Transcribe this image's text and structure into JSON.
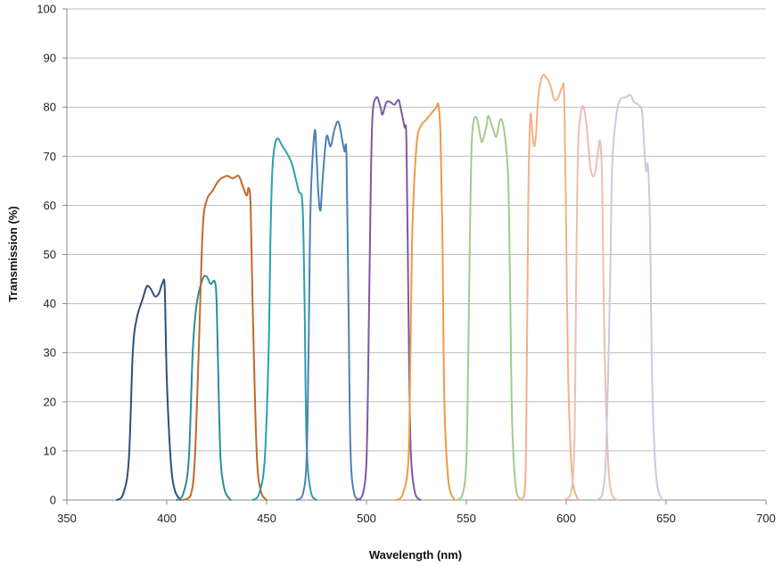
{
  "chart_data": {
    "type": "line",
    "title": "",
    "xlabel": "Wavelength (nm)",
    "ylabel": "Transmission (%)",
    "xlim": [
      350,
      700
    ],
    "ylim": [
      0,
      100
    ],
    "x_ticks": [
      "350",
      "400",
      "450",
      "500",
      "550",
      "600",
      "650",
      "700"
    ],
    "y_ticks": [
      "0",
      "10",
      "20",
      "30",
      "40",
      "50",
      "60",
      "70",
      "80",
      "90",
      "100"
    ],
    "grid": true,
    "legend": "none",
    "series": [
      {
        "color": "#2e4f78",
        "points": [
          [
            375,
            0
          ],
          [
            378,
            1
          ],
          [
            381,
            8
          ],
          [
            383,
            30
          ],
          [
            385,
            37
          ],
          [
            388,
            41
          ],
          [
            390,
            43.5
          ],
          [
            392,
            43
          ],
          [
            394,
            41.5
          ],
          [
            396,
            42
          ],
          [
            398,
            44.3
          ],
          [
            399,
            43
          ],
          [
            400,
            25
          ],
          [
            402,
            8
          ],
          [
            404,
            2
          ],
          [
            407,
            0
          ]
        ]
      },
      {
        "color": "#2e8d96",
        "points": [
          [
            405,
            0
          ],
          [
            408,
            1
          ],
          [
            411,
            8
          ],
          [
            413,
            30
          ],
          [
            415,
            40
          ],
          [
            418,
            45
          ],
          [
            420,
            45.5
          ],
          [
            422,
            44
          ],
          [
            424,
            44.5
          ],
          [
            425,
            40
          ],
          [
            426,
            22
          ],
          [
            427,
            8
          ],
          [
            429,
            2
          ],
          [
            432,
            0
          ]
        ]
      },
      {
        "color": "#c0692a",
        "points": [
          [
            408,
            0
          ],
          [
            412,
            1
          ],
          [
            414,
            8
          ],
          [
            416,
            30
          ],
          [
            418,
            55
          ],
          [
            420,
            61
          ],
          [
            423,
            63
          ],
          [
            426,
            65
          ],
          [
            430,
            66
          ],
          [
            433,
            65.5
          ],
          [
            436,
            66
          ],
          [
            438,
            64
          ],
          [
            440,
            62
          ],
          [
            441,
            63.5
          ],
          [
            442,
            60
          ],
          [
            443,
            40
          ],
          [
            445,
            10
          ],
          [
            447,
            2
          ],
          [
            450,
            0
          ]
        ]
      },
      {
        "color": "#2a9fb0",
        "points": [
          [
            443,
            0
          ],
          [
            446,
            1
          ],
          [
            449,
            8
          ],
          [
            451,
            30
          ],
          [
            452,
            55
          ],
          [
            453,
            68
          ],
          [
            455,
            73.5
          ],
          [
            458,
            72
          ],
          [
            461,
            70
          ],
          [
            463,
            68
          ],
          [
            466,
            63
          ],
          [
            468,
            60
          ],
          [
            469,
            40
          ],
          [
            470,
            12
          ],
          [
            472,
            2
          ],
          [
            475,
            0
          ]
        ]
      },
      {
        "color": "#4d80b5",
        "points": [
          [
            465,
            0
          ],
          [
            468,
            1
          ],
          [
            470,
            8
          ],
          [
            471,
            30
          ],
          [
            472,
            60
          ],
          [
            474,
            75
          ],
          [
            475,
            70
          ],
          [
            476,
            62
          ],
          [
            477,
            59
          ],
          [
            478,
            65
          ],
          [
            480,
            74
          ],
          [
            482,
            72
          ],
          [
            484,
            75.5
          ],
          [
            486,
            77
          ],
          [
            488,
            73
          ],
          [
            489,
            71
          ],
          [
            490,
            70
          ],
          [
            491,
            40
          ],
          [
            492,
            10
          ],
          [
            494,
            1
          ],
          [
            497,
            0
          ]
        ]
      },
      {
        "color": "#7a5aa3",
        "points": [
          [
            495,
            0
          ],
          [
            498,
            1
          ],
          [
            500,
            8
          ],
          [
            501,
            30
          ],
          [
            502,
            60
          ],
          [
            503,
            78
          ],
          [
            505,
            82
          ],
          [
            507,
            80
          ],
          [
            508,
            78.5
          ],
          [
            510,
            81
          ],
          [
            512,
            81
          ],
          [
            514,
            80.5
          ],
          [
            516,
            81.5
          ],
          [
            517,
            80
          ],
          [
            519,
            76
          ],
          [
            520,
            73
          ],
          [
            521,
            40
          ],
          [
            522,
            12
          ],
          [
            524,
            2
          ],
          [
            527,
            0
          ]
        ]
      },
      {
        "color": "#ee9a45",
        "points": [
          [
            515,
            0
          ],
          [
            518,
            1
          ],
          [
            521,
            8
          ],
          [
            522,
            30
          ],
          [
            523,
            55
          ],
          [
            525,
            72
          ],
          [
            527,
            76
          ],
          [
            530,
            77.5
          ],
          [
            533,
            79
          ],
          [
            535,
            80
          ],
          [
            536,
            80.5
          ],
          [
            537,
            75
          ],
          [
            538,
            55
          ],
          [
            539,
            20
          ],
          [
            541,
            4
          ],
          [
            544,
            0
          ]
        ]
      },
      {
        "color": "#a6c98d",
        "points": [
          [
            545,
            0
          ],
          [
            548,
            1
          ],
          [
            550,
            8
          ],
          [
            551,
            30
          ],
          [
            552,
            60
          ],
          [
            553,
            75
          ],
          [
            555,
            78
          ],
          [
            557,
            74
          ],
          [
            558,
            73
          ],
          [
            560,
            76
          ],
          [
            561,
            78.2
          ],
          [
            563,
            76
          ],
          [
            565,
            74
          ],
          [
            567,
            77.5
          ],
          [
            569,
            75
          ],
          [
            571,
            65
          ],
          [
            572,
            40
          ],
          [
            573,
            15
          ],
          [
            575,
            2
          ],
          [
            578,
            0
          ]
        ]
      },
      {
        "color": "#f4b08a",
        "points": [
          [
            576,
            0
          ],
          [
            579,
            1
          ],
          [
            580,
            15
          ],
          [
            581,
            60
          ],
          [
            582,
            78
          ],
          [
            583,
            75
          ],
          [
            584,
            72
          ],
          [
            585,
            75
          ],
          [
            586,
            82
          ],
          [
            588,
            86.3
          ],
          [
            590,
            86
          ],
          [
            592,
            84.5
          ],
          [
            594,
            81.5
          ],
          [
            596,
            82
          ],
          [
            598,
            84
          ],
          [
            599,
            82
          ],
          [
            600,
            55
          ],
          [
            601,
            25
          ],
          [
            603,
            5
          ],
          [
            606,
            0
          ]
        ]
      },
      {
        "color": "#eabfb1",
        "points": [
          [
            598,
            0
          ],
          [
            602,
            1
          ],
          [
            604,
            10
          ],
          [
            605,
            45
          ],
          [
            606,
            72
          ],
          [
            608,
            80
          ],
          [
            610,
            77
          ],
          [
            612,
            68
          ],
          [
            614,
            66
          ],
          [
            616,
            71
          ],
          [
            617,
            73
          ],
          [
            618,
            65
          ],
          [
            619,
            35
          ],
          [
            621,
            8
          ],
          [
            623,
            1
          ],
          [
            626,
            0
          ]
        ]
      },
      {
        "color": "#cfc7de",
        "points": [
          [
            615,
            0
          ],
          [
            618,
            1
          ],
          [
            620,
            10
          ],
          [
            622,
            45
          ],
          [
            623,
            68
          ],
          [
            625,
            78
          ],
          [
            627,
            81.5
          ],
          [
            630,
            82
          ],
          [
            632,
            82.5
          ],
          [
            634,
            81
          ],
          [
            636,
            80.5
          ],
          [
            638,
            79
          ],
          [
            639,
            72
          ],
          [
            640,
            67
          ],
          [
            641,
            68
          ],
          [
            642,
            55
          ],
          [
            643,
            25
          ],
          [
            645,
            5
          ],
          [
            648,
            0
          ]
        ]
      }
    ]
  }
}
